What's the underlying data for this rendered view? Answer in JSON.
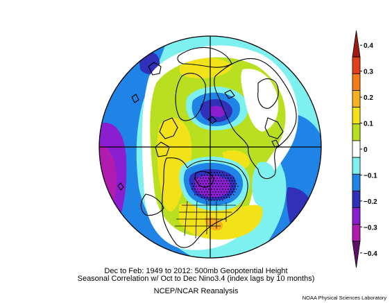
{
  "caption": {
    "line1": "Dec to Feb: 1949 to 2012: 500mb Geopotential Height",
    "line2": "Seasonal Correlation w/ Oct to Dec Nino3.4 (index lags by 10 months)",
    "line3": "NCEP/NCAR Reanalysis"
  },
  "credit": "NOAA Physical Sciences Laboratory",
  "colorbar": {
    "ticks": [
      "0.4",
      "0.3",
      "0.2",
      "0.1",
      "0",
      "−0.1",
      "−0.2",
      "−0.3",
      "−0.4"
    ],
    "colors": [
      "#a01a10",
      "#e0401a",
      "#f47c18",
      "#f8b020",
      "#f2e21a",
      "#b8e020",
      "#ffffff",
      "#7ef0f0",
      "#1f84e6",
      "#3030b8",
      "#8a1ed0",
      "#b01cb0",
      "#60106a"
    ],
    "range": [
      -0.4,
      0.4
    ]
  },
  "map_colors": {
    "neg4": "#b01cb0",
    "neg3": "#8a1ed0",
    "neg2": "#3030b8",
    "neg1": "#1f84e6",
    "neg0": "#7ef0f0",
    "zero": "#ffffff",
    "pos1": "#b8e020",
    "pos2": "#f2e21a",
    "pos3": "#f8b020"
  }
}
